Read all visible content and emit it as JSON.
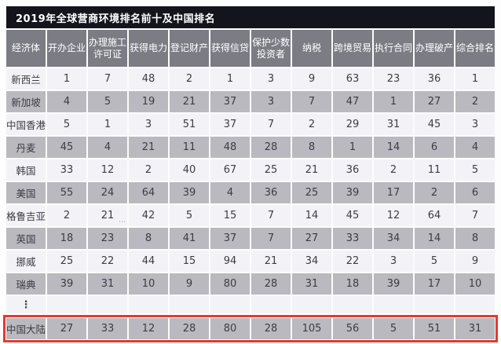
{
  "chart_data": {
    "type": "table",
    "title": "2019年全球营商环境排名前十及中国排名",
    "columns": [
      "经济体",
      "开办企业",
      "办理施工\n许可证",
      "获得电力",
      "登记财产",
      "获得信贷",
      "保护少数\n投资者",
      "纳税",
      "跨境贸易",
      "执行合同",
      "办理破产",
      "综合排名"
    ],
    "rows": [
      {
        "economy": "新西兰",
        "values": [
          "1",
          "7",
          "48",
          "2",
          "1",
          "3",
          "9",
          "63",
          "23",
          "36",
          "1"
        ]
      },
      {
        "economy": "新加坡",
        "values": [
          "4",
          "5",
          "19",
          "21",
          "37",
          "3",
          "7",
          "47",
          "1",
          "27",
          "2"
        ]
      },
      {
        "economy": "中国香港",
        "values": [
          "5",
          "1",
          "3",
          "51",
          "37",
          "7",
          "2",
          "29",
          "31",
          "45",
          "3"
        ]
      },
      {
        "economy": "丹麦",
        "values": [
          "45",
          "4",
          "21",
          "11",
          "48",
          "28",
          "8",
          "1",
          "14",
          "6",
          "4"
        ]
      },
      {
        "economy": "韩国",
        "values": [
          "33",
          "12",
          "2",
          "40",
          "67",
          "25",
          "21",
          "36",
          "2",
          "11",
          "5"
        ]
      },
      {
        "economy": "美国",
        "values": [
          "55",
          "24",
          "64",
          "39",
          "4",
          "36",
          "25",
          "39",
          "17",
          "2",
          "6"
        ]
      },
      {
        "economy": "格鲁吉亚",
        "values": [
          "2",
          "21",
          "42",
          "5",
          "15",
          "7",
          "14",
          "45",
          "12",
          "64",
          "7"
        ]
      },
      {
        "economy": "英国",
        "values": [
          "18",
          "23",
          "8",
          "41",
          "37",
          "7",
          "27",
          "33",
          "34",
          "14",
          "8"
        ]
      },
      {
        "economy": "挪威",
        "values": [
          "25",
          "22",
          "44",
          "15",
          "94",
          "21",
          "34",
          "22",
          "3",
          "5",
          "9"
        ]
      },
      {
        "economy": "瑞典",
        "values": [
          "39",
          "31",
          "10",
          "9",
          "80",
          "28",
          "31",
          "18",
          "39",
          "17",
          "10"
        ]
      },
      {
        "economy": "⋮",
        "values": [
          "",
          "",
          "",
          "",
          "",
          "",
          "",
          "",
          "",
          "",
          ""
        ],
        "ellipsis": true
      },
      {
        "economy": "中国大陆",
        "values": [
          "27",
          "33",
          "12",
          "28",
          "80",
          "28",
          "105",
          "56",
          "5",
          "51",
          "31"
        ],
        "highlighted": true
      }
    ],
    "layout_hints": {
      "highlight_row": "中国大陆",
      "striping": "alternating light/gray rows"
    }
  },
  "artifacts": {
    "watermark": "⋯"
  },
  "colors": {
    "title_bg": "#14141d",
    "header_bg": "#7c7c85",
    "row_light": "#f2f2f7",
    "row_dark": "#b9b9bf",
    "highlight_border": "#e23b2e",
    "header_text": "#ffffff",
    "body_text": "#3c3c42"
  }
}
